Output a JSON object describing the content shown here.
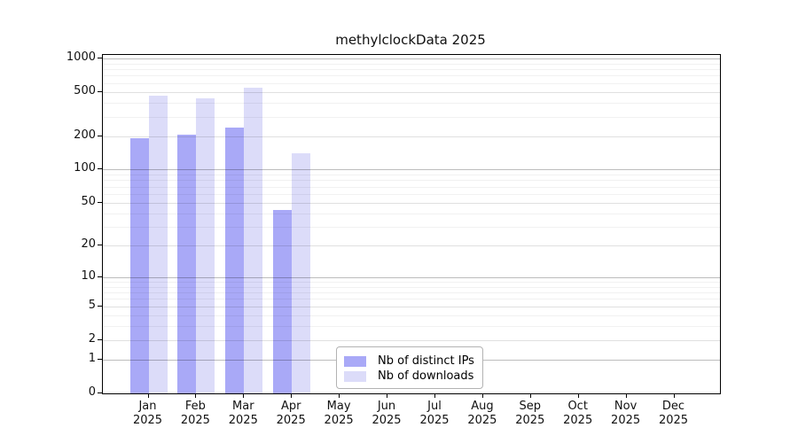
{
  "chart_data": {
    "type": "bar",
    "title": "methylclockData 2025",
    "xlabel": "",
    "ylabel": "",
    "year_label": "2025",
    "categories": [
      "Jan",
      "Feb",
      "Mar",
      "Apr",
      "May",
      "Jun",
      "Jul",
      "Aug",
      "Sep",
      "Oct",
      "Nov",
      "Dec"
    ],
    "series": [
      {
        "name": "Nb of distinct IPs",
        "color": "#a9a9f7",
        "values": [
          190,
          205,
          240,
          43,
          null,
          null,
          null,
          null,
          null,
          null,
          null,
          null
        ]
      },
      {
        "name": "Nb of downloads",
        "color": "#dcdcf9",
        "values": [
          465,
          440,
          545,
          140,
          null,
          null,
          null,
          null,
          null,
          null,
          null,
          null
        ]
      }
    ],
    "y_ticks": [
      0,
      1,
      2,
      5,
      10,
      20,
      50,
      100,
      200,
      500,
      1000
    ],
    "major_gridlines": [
      1,
      10,
      100,
      1000
    ],
    "mid_gridlines": [
      2,
      5,
      20,
      50,
      200,
      500
    ],
    "minor_gridlines": [
      3,
      4,
      6,
      7,
      8,
      9,
      30,
      40,
      60,
      70,
      80,
      90,
      300,
      400,
      600,
      700,
      800,
      900
    ],
    "scale": "log10(1+y)",
    "ylim": [
      0,
      1070
    ],
    "grid": "on",
    "legend_position": "inside-bottom-center"
  }
}
